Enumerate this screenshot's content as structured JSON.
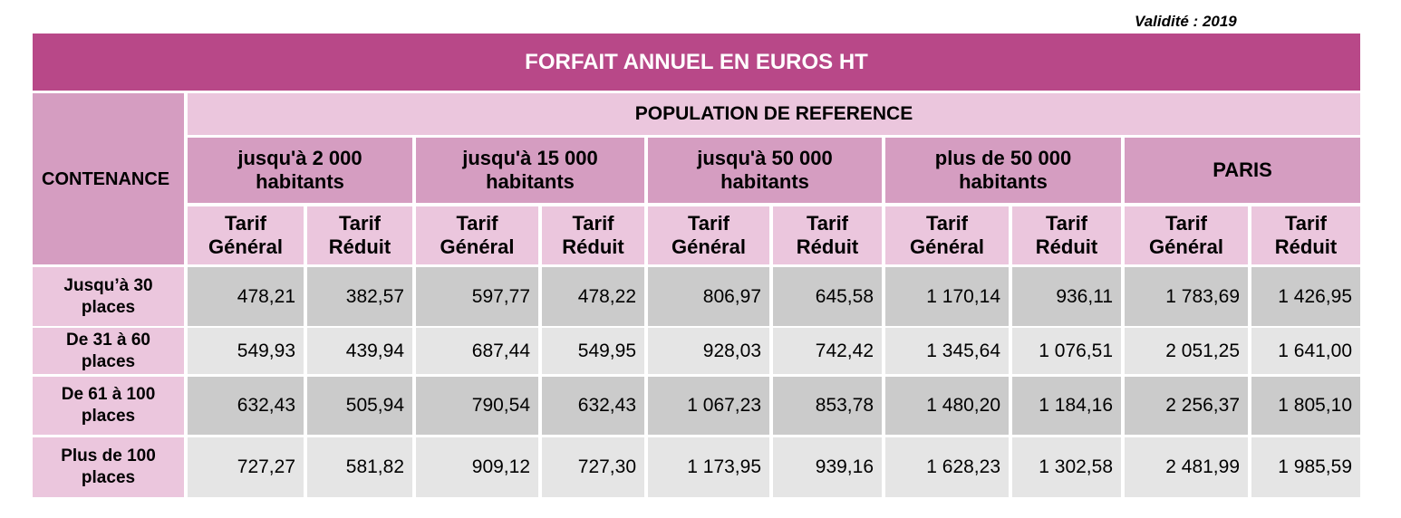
{
  "validity": "Validité : 2019",
  "title": "FORFAIT ANNUEL EN EUROS HT",
  "row_header": "CONTENANCE",
  "population_header": "POPULATION DE REFERENCE",
  "groups": [
    {
      "line1": "jusqu'à 2 000",
      "line2": "habitants"
    },
    {
      "line1": "jusqu'à 15 000",
      "line2": "habitants"
    },
    {
      "line1": "jusqu'à 50 000",
      "line2": "habitants"
    },
    {
      "line1": "plus de 50 000",
      "line2": "habitants"
    },
    {
      "line1": "PARIS",
      "line2": ""
    }
  ],
  "tarif_general": {
    "line1": "Tarif",
    "line2": "Général"
  },
  "tarif_reduit": {
    "line1": "Tarif",
    "line2": "Réduit"
  },
  "rows": [
    {
      "label1": "Jusqu’à 30",
      "label2": "places",
      "values": [
        "478,21",
        "382,57",
        "597,77",
        "478,22",
        "806,97",
        "645,58",
        "1 170,14",
        "936,11",
        "1 783,69",
        "1 426,95"
      ]
    },
    {
      "label1": "De 31 à 60",
      "label2": "places",
      "values": [
        "549,93",
        "439,94",
        "687,44",
        "549,95",
        "928,03",
        "742,42",
        "1 345,64",
        "1 076,51",
        "2 051,25",
        "1 641,00"
      ]
    },
    {
      "label1": "De 61 à 100",
      "label2": "places",
      "values": [
        "632,43",
        "505,94",
        "790,54",
        "632,43",
        "1 067,23",
        "853,78",
        "1 480,20",
        "1 184,16",
        "2 256,37",
        "1 805,10"
      ]
    },
    {
      "label1": "Plus de 100",
      "label2": "places",
      "values": [
        "727,27",
        "581,82",
        "909,12",
        "727,30",
        "1 173,95",
        "939,16",
        "1 628,23",
        "1 302,58",
        "2 481,99",
        "1 985,59"
      ]
    }
  ]
}
